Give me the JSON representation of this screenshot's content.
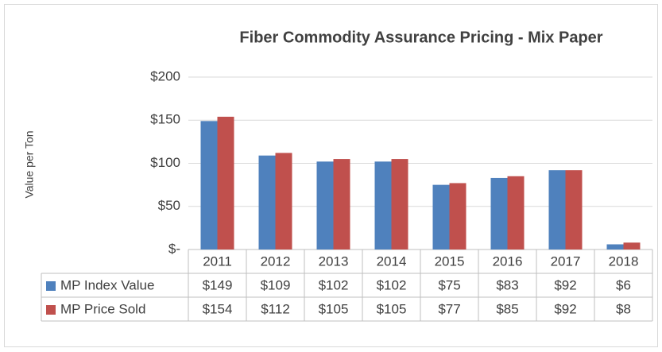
{
  "chart_data": {
    "type": "bar",
    "title": "Fiber Commodity Assurance Pricing - Mix Paper",
    "y_label": "Value per Ton",
    "categories": [
      "2011",
      "2012",
      "2013",
      "2014",
      "2015",
      "2016",
      "2017",
      "2018"
    ],
    "series": [
      {
        "name": "MP Index Value",
        "color": "#4f81bd",
        "values": [
          149,
          109,
          102,
          102,
          75,
          83,
          92,
          6
        ],
        "value_labels": [
          "$149",
          "$109",
          "$102",
          "$102",
          "$75",
          "$83",
          "$92",
          "$6"
        ]
      },
      {
        "name": "MP Price Sold",
        "color": "#c0504d",
        "values": [
          154,
          112,
          105,
          105,
          77,
          85,
          92,
          8
        ],
        "value_labels": [
          "$154",
          "$112",
          "$105",
          "$105",
          "$77",
          "$85",
          "$92",
          "$8"
        ]
      }
    ],
    "ylim": [
      0,
      200
    ],
    "yticks": [
      {
        "value": 0,
        "label": "$-"
      },
      {
        "value": 50,
        "label": "$50"
      },
      {
        "value": 100,
        "label": "$100"
      },
      {
        "value": 150,
        "label": "$150"
      },
      {
        "value": 200,
        "label": "$200"
      }
    ],
    "grid": true
  }
}
